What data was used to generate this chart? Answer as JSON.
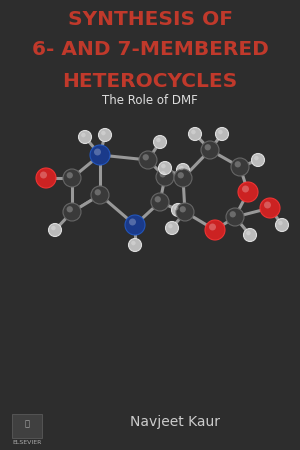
{
  "bg_color": "#2d2d2d",
  "title_lines": [
    "SYNTHESIS OF",
    "6- AND 7-MEMBERED",
    "HETEROCYCLES"
  ],
  "title_color": "#c0392b",
  "title_fontsize": 14.5,
  "subtitle": "The Role of DMF",
  "subtitle_color": "#dddddd",
  "subtitle_fontsize": 8.5,
  "author": "Navjeet Kaur",
  "author_color": "#cccccc",
  "author_fontsize": 10,
  "publisher": "ELSEVIER",
  "publisher_color": "#aaaaaa",
  "publisher_fontsize": 4.5,
  "carbon_color": "#3a3a3a",
  "carbon_edge": "#666666",
  "nitrogen_color": "#1a3a8a",
  "nitrogen_edge": "#2255bb",
  "oxygen_color": "#cc2222",
  "oxygen_edge": "#ee3333",
  "hydrogen_color": "#bbbbbb",
  "hydrogen_edge": "#dddddd",
  "bond_color": "#999999",
  "bond_lw": 2.2,
  "carbon_r": 9,
  "nitrogen_r": 10,
  "oxygen_r": 10,
  "hydrogen_r": 6.5
}
